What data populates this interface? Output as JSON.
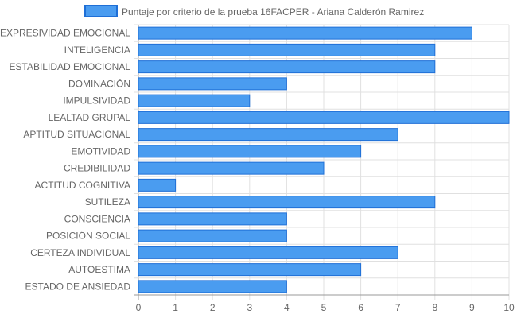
{
  "chart_data": {
    "type": "bar",
    "orientation": "horizontal",
    "categories": [
      "EXPRESIVIDAD EMOCIONAL",
      "INTELIGENCIA",
      "ESTABILIDAD EMOCIONAL",
      "DOMINACIÓN",
      "IMPULSIVIDAD",
      "LEALTAD GRUPAL",
      "APTITUD SITUACIONAL",
      "EMOTIVIDAD",
      "CREDIBILIDAD",
      "ACTITUD COGNITIVA",
      "SUTILEZA",
      "CONSCIENCIA",
      "POSICIÓN SOCIAL",
      "CERTEZA INDIVIDUAL",
      "AUTOESTIMA",
      "ESTADO DE ANSIEDAD"
    ],
    "series": [
      {
        "name": "Puntaje por criterio de la prueba 16FACPER - Ariana Calderón Ramirez",
        "values": [
          9,
          8,
          8,
          4,
          3,
          10,
          7,
          6,
          5,
          1,
          8,
          4,
          4,
          7,
          6,
          4
        ]
      }
    ],
    "xlim": [
      0,
      10
    ],
    "xticks": [
      "0",
      "1",
      "2",
      "3",
      "4",
      "5",
      "6",
      "7",
      "8",
      "9",
      "10"
    ],
    "grid": true,
    "legend": "top-center",
    "colors": {
      "bar_fill": "#4a9cf0",
      "bar_stroke": "#1f6fd6",
      "grid": "#e0e0e0",
      "axis": "#999999",
      "text": "#666666"
    }
  }
}
